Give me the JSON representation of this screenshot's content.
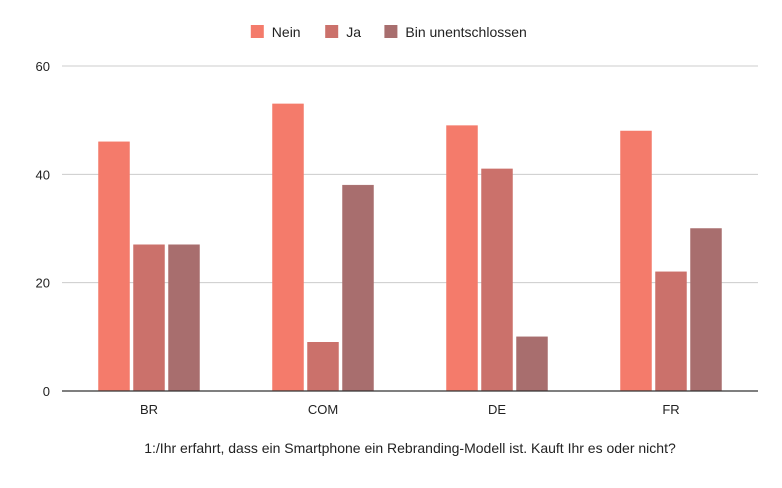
{
  "chart_data": {
    "type": "bar",
    "categories": [
      "BR",
      "COM",
      "DE",
      "FR"
    ],
    "series": [
      {
        "name": "Nein",
        "values": [
          46,
          53,
          49,
          48
        ],
        "color": "#f47b6b"
      },
      {
        "name": "Ja",
        "values": [
          27,
          9,
          41,
          22
        ],
        "color": "#cb716b"
      },
      {
        "name": "Bin unentschlossen",
        "values": [
          27,
          38,
          10,
          30
        ],
        "color": "#a86e6e"
      }
    ],
    "title": "",
    "xlabel": "1:/Ihr erfahrt, dass ein Smartphone ein Rebranding-Modell ist. Kauft Ihr es oder nicht?",
    "ylabel": "",
    "ylim": [
      0,
      60
    ],
    "yticks": [
      0,
      20,
      40,
      60
    ],
    "grid": true,
    "legend_position": "top-center"
  }
}
